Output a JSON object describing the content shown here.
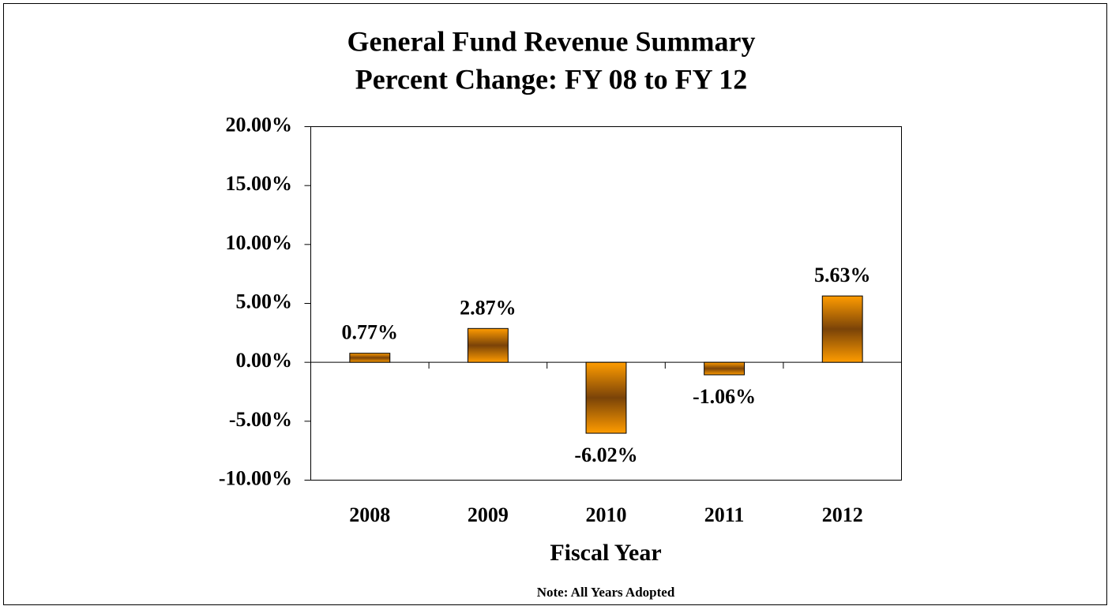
{
  "chart_data": {
    "type": "bar",
    "title": "General Fund Revenue Summary",
    "subtitle": "Percent Change: FY 08 to FY 12",
    "x_label": "Fiscal Year",
    "note": "Note: All Years Adopted",
    "categories": [
      "2008",
      "2009",
      "2010",
      "2011",
      "2012"
    ],
    "values": [
      0.77,
      2.87,
      -6.02,
      -1.06,
      5.63
    ],
    "value_labels": [
      "0.77%",
      "2.87%",
      "-6.02%",
      "-1.06%",
      "5.63%"
    ],
    "color": "#ff9c00",
    "ylim": [
      -10,
      20
    ],
    "yticks": [
      {
        "value": -10,
        "label": "-10.00%"
      },
      {
        "value": -5,
        "label": "-5.00%"
      },
      {
        "value": 0,
        "label": "0.00%"
      },
      {
        "value": 5,
        "label": "5.00%"
      },
      {
        "value": 10,
        "label": "10.00%"
      },
      {
        "value": 15,
        "label": "15.00%"
      },
      {
        "value": 20,
        "label": "20.00%"
      }
    ],
    "grid": false
  }
}
